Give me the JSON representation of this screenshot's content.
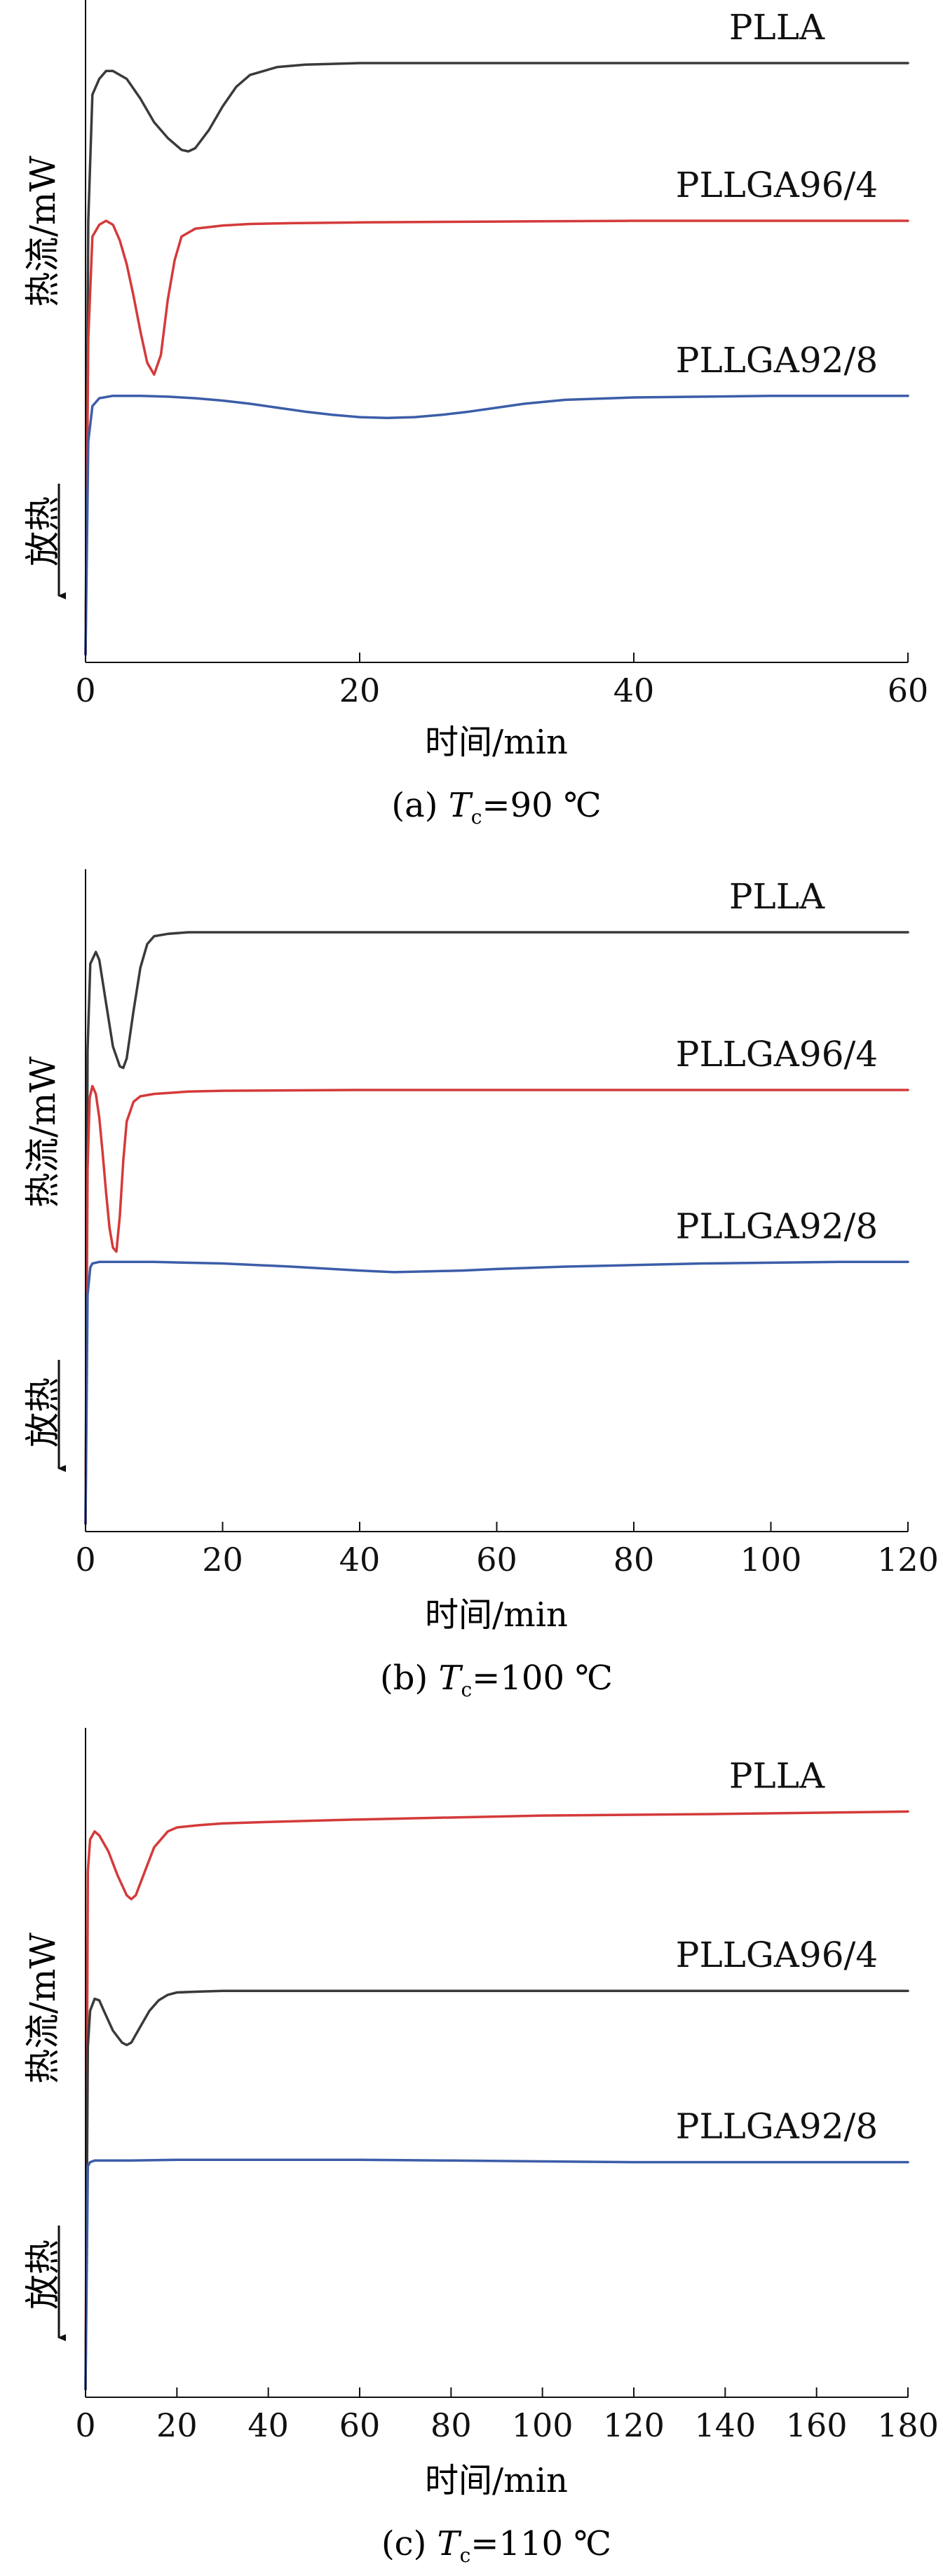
{
  "panels": [
    {
      "caption_prefix": "(a) ",
      "caption_T": "T",
      "caption_sub": "c",
      "caption_suffix": "=90 ℃",
      "ylabel": "热流/mW",
      "exo_label": "放热",
      "chart_data": {
        "type": "line",
        "xlabel": "时间/min",
        "xlim": [
          0,
          60
        ],
        "xticks": [
          0,
          20,
          40,
          60
        ],
        "ylim": [
          -7.6,
          0.8
        ],
        "grid": false,
        "series": [
          {
            "name": "PLLA",
            "color": "#3a3a3a",
            "x": [
              0,
              0.2,
              0.5,
              1,
              1.5,
              2,
              3,
              4,
              5,
              6,
              7,
              7.5,
              8,
              9,
              10,
              11,
              12,
              14,
              16,
              20,
              30,
              40,
              50,
              60
            ],
            "y": [
              -7.5,
              -2.0,
              -0.4,
              -0.2,
              -0.1,
              -0.1,
              -0.2,
              -0.45,
              -0.75,
              -0.95,
              -1.1,
              -1.12,
              -1.08,
              -0.85,
              -0.55,
              -0.3,
              -0.15,
              -0.05,
              -0.02,
              0,
              0,
              0,
              0,
              0
            ]
          },
          {
            "name": "PLLGA96/4",
            "color": "#d43a3a",
            "x": [
              0,
              0.2,
              0.5,
              1,
              1.5,
              2,
              2.5,
              3,
              3.5,
              4,
              4.5,
              5,
              5.5,
              6,
              6.5,
              7,
              8,
              10,
              12,
              15,
              20,
              30,
              40,
              50,
              60
            ],
            "y": [
              -7.5,
              -3.5,
              -2.2,
              -2.05,
              -2.0,
              -2.05,
              -2.25,
              -2.55,
              -2.95,
              -3.4,
              -3.8,
              -3.95,
              -3.7,
              -3.0,
              -2.5,
              -2.2,
              -2.1,
              -2.06,
              -2.04,
              -2.03,
              -2.02,
              -2.01,
              -2.0,
              -2.0,
              -2.0
            ]
          },
          {
            "name": "PLLGA92/8",
            "color": "#3c5da8",
            "x": [
              0,
              0.2,
              0.5,
              1,
              2,
              4,
              6,
              8,
              10,
              12,
              14,
              16,
              18,
              20,
              22,
              24,
              26,
              28,
              30,
              32,
              35,
              40,
              45,
              50,
              60
            ],
            "y": [
              -7.5,
              -4.8,
              -4.35,
              -4.25,
              -4.22,
              -4.22,
              -4.23,
              -4.25,
              -4.28,
              -4.32,
              -4.37,
              -4.42,
              -4.46,
              -4.49,
              -4.5,
              -4.49,
              -4.46,
              -4.42,
              -4.37,
              -4.32,
              -4.27,
              -4.24,
              -4.23,
              -4.22,
              -4.22
            ]
          }
        ]
      }
    },
    {
      "caption_prefix": "(b) ",
      "caption_T": "T",
      "caption_sub": "c",
      "caption_suffix": "=100 ℃",
      "ylabel": "热流/mW",
      "exo_label": "放热",
      "chart_data": {
        "type": "line",
        "xlabel": "时间/min",
        "xlim": [
          0,
          120
        ],
        "xticks": [
          0,
          20,
          40,
          60,
          80,
          100,
          120
        ],
        "ylim": [
          -7.6,
          0.8
        ],
        "grid": false,
        "series": [
          {
            "name": "PLLA",
            "color": "#3a3a3a",
            "x": [
              0,
              0.3,
              0.7,
              1.5,
              2,
              3,
              4,
              5,
              5.5,
              6,
              7,
              8,
              9,
              10,
              12,
              15,
              20,
              40,
              60,
              80,
              100,
              120
            ],
            "y": [
              -7.5,
              -1.5,
              -0.4,
              -0.25,
              -0.35,
              -0.9,
              -1.45,
              -1.7,
              -1.72,
              -1.6,
              -1.0,
              -0.45,
              -0.15,
              -0.05,
              -0.02,
              0,
              0,
              0,
              0,
              0,
              0,
              0
            ]
          },
          {
            "name": "PLLGA96/4",
            "color": "#d43a3a",
            "x": [
              0,
              0.3,
              0.6,
              1,
              1.5,
              2,
              2.5,
              3,
              3.5,
              4,
              4.5,
              5,
              5.5,
              6,
              7,
              8,
              10,
              15,
              20,
              40,
              60,
              80,
              100,
              120
            ],
            "y": [
              -7.5,
              -3.0,
              -2.1,
              -1.95,
              -2.05,
              -2.35,
              -2.8,
              -3.3,
              -3.75,
              -4.0,
              -4.05,
              -3.6,
              -2.9,
              -2.4,
              -2.15,
              -2.08,
              -2.05,
              -2.02,
              -2.01,
              -2.0,
              -2.0,
              -2.0,
              -2.0,
              -2.0
            ]
          },
          {
            "name": "PLLGA92/8",
            "color": "#3c5da8",
            "x": [
              0,
              0.3,
              0.7,
              1,
              2,
              5,
              10,
              20,
              30,
              40,
              45,
              50,
              55,
              60,
              70,
              80,
              90,
              100,
              110,
              120
            ],
            "y": [
              -7.5,
              -4.6,
              -4.25,
              -4.2,
              -4.18,
              -4.18,
              -4.18,
              -4.2,
              -4.24,
              -4.29,
              -4.31,
              -4.3,
              -4.29,
              -4.27,
              -4.24,
              -4.22,
              -4.2,
              -4.19,
              -4.18,
              -4.18
            ]
          }
        ]
      }
    },
    {
      "caption_prefix": "(c) ",
      "caption_T": "T",
      "caption_sub": "c",
      "caption_suffix": "=110 ℃",
      "ylabel": "热流/mW",
      "exo_label": "放热",
      "chart_data": {
        "type": "line",
        "xlabel": "时间/min",
        "xlim": [
          0,
          180
        ],
        "xticks": [
          0,
          20,
          40,
          60,
          80,
          100,
          120,
          140,
          160,
          180
        ],
        "ylim": [
          -7.6,
          0.8
        ],
        "grid": false,
        "series": [
          {
            "name": "PLLA",
            "color": "#d43a3a",
            "x": [
              0,
              0.5,
              1,
              2,
              3,
              5,
              7,
              9,
              10,
              11,
              13,
              15,
              18,
              20,
              25,
              30,
              40,
              60,
              100,
              140,
              180
            ],
            "y": [
              -7.5,
              -1.0,
              -0.6,
              -0.5,
              -0.55,
              -0.75,
              -1.05,
              -1.3,
              -1.35,
              -1.3,
              -1.0,
              -0.7,
              -0.5,
              -0.45,
              -0.42,
              -0.4,
              -0.38,
              -0.35,
              -0.3,
              -0.28,
              -0.25
            ]
          },
          {
            "name": "PLLGA96/4",
            "color": "#3a3a3a",
            "x": [
              0,
              0.5,
              1,
              2,
              3,
              4,
              6,
              8,
              9,
              10,
              12,
              14,
              16,
              18,
              20,
              25,
              30,
              40,
              60,
              100,
              140,
              180
            ],
            "y": [
              -7.5,
              -3.2,
              -2.75,
              -2.6,
              -2.62,
              -2.75,
              -3.0,
              -3.15,
              -3.18,
              -3.15,
              -2.95,
              -2.75,
              -2.62,
              -2.55,
              -2.52,
              -2.51,
              -2.5,
              -2.5,
              -2.5,
              -2.5,
              -2.5,
              -2.5
            ]
          },
          {
            "name": "PLLGA92/8",
            "color": "#3c5da8",
            "x": [
              0,
              0.5,
              1,
              2,
              5,
              10,
              20,
              40,
              60,
              80,
              100,
              120,
              140,
              160,
              180
            ],
            "y": [
              -7.5,
              -4.7,
              -4.65,
              -4.63,
              -4.63,
              -4.63,
              -4.62,
              -4.62,
              -4.62,
              -4.63,
              -4.64,
              -4.65,
              -4.65,
              -4.65,
              -4.65
            ]
          }
        ]
      }
    }
  ]
}
